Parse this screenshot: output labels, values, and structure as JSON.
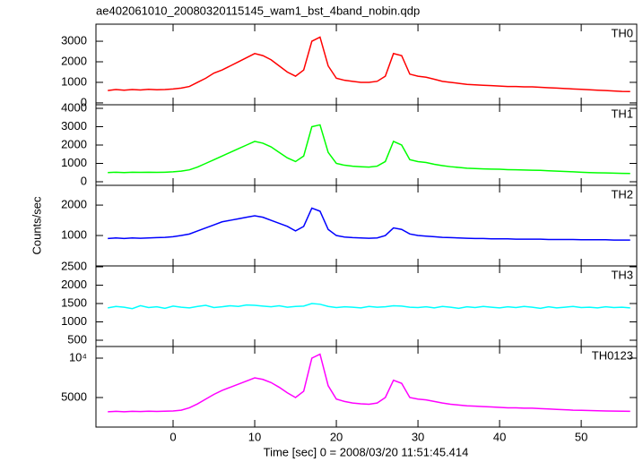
{
  "title": "ae402061010_20080320115145_wam1_bst_4band_nobin.qdp",
  "x_label": "Time [sec] 0 = 2008/03/20 11:51:45.414",
  "y_label": "Counts/sec",
  "chart_data": [
    {
      "type": "line",
      "xlim": [
        -9.45,
        56.8
      ],
      "xticks": [
        0,
        10,
        20,
        30,
        40,
        50
      ],
      "ylim": [
        -90,
        3830
      ],
      "yticks": [
        0,
        1000,
        2000,
        3000
      ],
      "x": [
        -8,
        -7,
        -6,
        -5,
        -4,
        -3,
        -2,
        -1,
        0,
        1,
        2,
        3,
        4,
        5,
        6,
        7,
        8,
        9,
        10,
        11,
        12,
        13,
        14,
        15,
        16,
        17,
        18,
        19,
        20,
        21,
        22,
        23,
        24,
        25,
        26,
        27,
        28,
        29,
        30,
        31,
        32,
        33,
        34,
        35,
        36,
        37,
        38,
        39,
        40,
        41,
        42,
        43,
        44,
        45,
        46,
        47,
        48,
        49,
        50,
        51,
        52,
        53,
        54,
        55,
        56
      ],
      "series": [
        {
          "name": "TH0",
          "color": "#ff0000",
          "values": [
            600,
            650,
            620,
            650,
            630,
            660,
            640,
            650,
            680,
            720,
            800,
            1000,
            1200,
            1450,
            1600,
            1800,
            2000,
            2200,
            2400,
            2300,
            2100,
            1800,
            1500,
            1300,
            1600,
            3000,
            3200,
            1800,
            1200,
            1100,
            1050,
            1000,
            1000,
            1050,
            1300,
            2400,
            2300,
            1400,
            1300,
            1250,
            1150,
            1050,
            1000,
            950,
            900,
            880,
            860,
            840,
            820,
            800,
            800,
            780,
            780,
            760,
            740,
            720,
            700,
            680,
            660,
            640,
            620,
            600,
            580,
            560,
            550
          ]
        }
      ]
    },
    {
      "type": "line",
      "xlim": [
        -9.45,
        56.8
      ],
      "xticks": [
        0,
        10,
        20,
        30,
        40,
        50
      ],
      "ylim": [
        -195,
        4195
      ],
      "yticks": [
        0,
        1000,
        2000,
        3000,
        4000
      ],
      "x": [
        -8,
        -7,
        -6,
        -5,
        -4,
        -3,
        -2,
        -1,
        0,
        1,
        2,
        3,
        4,
        5,
        6,
        7,
        8,
        9,
        10,
        11,
        12,
        13,
        14,
        15,
        16,
        17,
        18,
        19,
        20,
        21,
        22,
        23,
        24,
        25,
        26,
        27,
        28,
        29,
        30,
        31,
        32,
        33,
        34,
        35,
        36,
        37,
        38,
        39,
        40,
        41,
        42,
        43,
        44,
        45,
        46,
        47,
        48,
        49,
        50,
        51,
        52,
        53,
        54,
        55,
        56
      ],
      "series": [
        {
          "name": "TH1",
          "color": "#00ff00",
          "values": [
            500,
            520,
            500,
            520,
            510,
            520,
            510,
            520,
            540,
            580,
            650,
            800,
            1000,
            1200,
            1400,
            1600,
            1800,
            2000,
            2200,
            2100,
            1900,
            1600,
            1300,
            1100,
            1400,
            3000,
            3100,
            1600,
            1000,
            900,
            850,
            820,
            800,
            850,
            1100,
            2200,
            2000,
            1200,
            1100,
            1050,
            950,
            880,
            820,
            780,
            740,
            720,
            700,
            690,
            680,
            660,
            650,
            640,
            630,
            620,
            600,
            580,
            560,
            540,
            520,
            500,
            490,
            480,
            470,
            460,
            450
          ]
        }
      ]
    },
    {
      "type": "line",
      "xlim": [
        -9.45,
        56.8
      ],
      "xticks": [
        0,
        10,
        20,
        30,
        40,
        50
      ],
      "ylim": [
        0,
        2650
      ],
      "yticks": [
        1000,
        2000
      ],
      "x": [
        -8,
        -7,
        -6,
        -5,
        -4,
        -3,
        -2,
        -1,
        0,
        1,
        2,
        3,
        4,
        5,
        6,
        7,
        8,
        9,
        10,
        11,
        12,
        13,
        14,
        15,
        16,
        17,
        18,
        19,
        20,
        21,
        22,
        23,
        24,
        25,
        26,
        27,
        28,
        29,
        30,
        31,
        32,
        33,
        34,
        35,
        36,
        37,
        38,
        39,
        40,
        41,
        42,
        43,
        44,
        45,
        46,
        47,
        48,
        49,
        50,
        51,
        52,
        53,
        54,
        55,
        56
      ],
      "series": [
        {
          "name": "TH2",
          "color": "#0000ff",
          "values": [
            900,
            920,
            900,
            920,
            910,
            920,
            930,
            940,
            960,
            1000,
            1050,
            1150,
            1250,
            1350,
            1450,
            1500,
            1550,
            1600,
            1650,
            1600,
            1500,
            1400,
            1300,
            1150,
            1300,
            1900,
            1800,
            1200,
            1000,
            950,
            930,
            920,
            910,
            920,
            1000,
            1250,
            1200,
            1050,
            1000,
            980,
            960,
            940,
            930,
            920,
            910,
            900,
            900,
            890,
            890,
            890,
            880,
            880,
            880,
            880,
            870,
            870,
            870,
            870,
            860,
            860,
            860,
            860,
            850,
            850,
            850
          ]
        }
      ]
    },
    {
      "type": "line",
      "xlim": [
        -9.45,
        56.8
      ],
      "xticks": [
        0,
        10,
        20,
        30,
        40,
        50
      ],
      "ylim": [
        329,
        2524
      ],
      "yticks": [
        500,
        1000,
        1500,
        2000,
        2500
      ],
      "x": [
        -8,
        -7,
        -6,
        -5,
        -4,
        -3,
        -2,
        -1,
        0,
        1,
        2,
        3,
        4,
        5,
        6,
        7,
        8,
        9,
        10,
        11,
        12,
        13,
        14,
        15,
        16,
        17,
        18,
        19,
        20,
        21,
        22,
        23,
        24,
        25,
        26,
        27,
        28,
        29,
        30,
        31,
        32,
        33,
        34,
        35,
        36,
        37,
        38,
        39,
        40,
        41,
        42,
        43,
        44,
        45,
        46,
        47,
        48,
        49,
        50,
        51,
        52,
        53,
        54,
        55,
        56
      ],
      "series": [
        {
          "name": "TH3",
          "color": "#00ffff",
          "values": [
            1380,
            1420,
            1400,
            1360,
            1440,
            1390,
            1410,
            1370,
            1430,
            1400,
            1380,
            1420,
            1450,
            1390,
            1410,
            1440,
            1420,
            1460,
            1450,
            1430,
            1410,
            1440,
            1400,
            1420,
            1430,
            1500,
            1480,
            1420,
            1390,
            1410,
            1400,
            1380,
            1420,
            1400,
            1410,
            1440,
            1430,
            1400,
            1390,
            1410,
            1380,
            1420,
            1400,
            1370,
            1410,
            1390,
            1420,
            1400,
            1380,
            1410,
            1390,
            1420,
            1400,
            1370,
            1410,
            1380,
            1400,
            1420,
            1390,
            1400,
            1380,
            1410,
            1390,
            1400,
            1380
          ]
        }
      ]
    },
    {
      "type": "line",
      "xlim": [
        -9.45,
        56.8
      ],
      "xticks": [
        0,
        10,
        20,
        30,
        40,
        50
      ],
      "ylim": [
        1250,
        11477
      ],
      "yticks": [
        5000,
        {
          "value": 10000,
          "label": "10⁴"
        }
      ],
      "x": [
        -8,
        -7,
        -6,
        -5,
        -4,
        -3,
        -2,
        -1,
        0,
        1,
        2,
        3,
        4,
        5,
        6,
        7,
        8,
        9,
        10,
        11,
        12,
        13,
        14,
        15,
        16,
        17,
        18,
        19,
        20,
        21,
        22,
        23,
        24,
        25,
        26,
        27,
        28,
        29,
        30,
        31,
        32,
        33,
        34,
        35,
        36,
        37,
        38,
        39,
        40,
        41,
        42,
        43,
        44,
        45,
        46,
        47,
        48,
        49,
        50,
        51,
        52,
        53,
        54,
        55,
        56
      ],
      "series": [
        {
          "name": "TH0123",
          "color": "#ff00ff",
          "values": [
            3200,
            3250,
            3200,
            3250,
            3220,
            3260,
            3240,
            3260,
            3300,
            3400,
            3700,
            4200,
            4800,
            5400,
            5900,
            6300,
            6700,
            7100,
            7500,
            7300,
            6900,
            6300,
            5600,
            5000,
            5800,
            10000,
            10500,
            6500,
            4800,
            4500,
            4300,
            4200,
            4150,
            4300,
            5000,
            7200,
            6800,
            5000,
            4800,
            4700,
            4500,
            4300,
            4150,
            4050,
            3950,
            3900,
            3850,
            3800,
            3750,
            3700,
            3700,
            3650,
            3650,
            3600,
            3550,
            3500,
            3450,
            3400,
            3380,
            3350,
            3320,
            3300,
            3280,
            3260,
            3250
          ]
        }
      ]
    }
  ]
}
